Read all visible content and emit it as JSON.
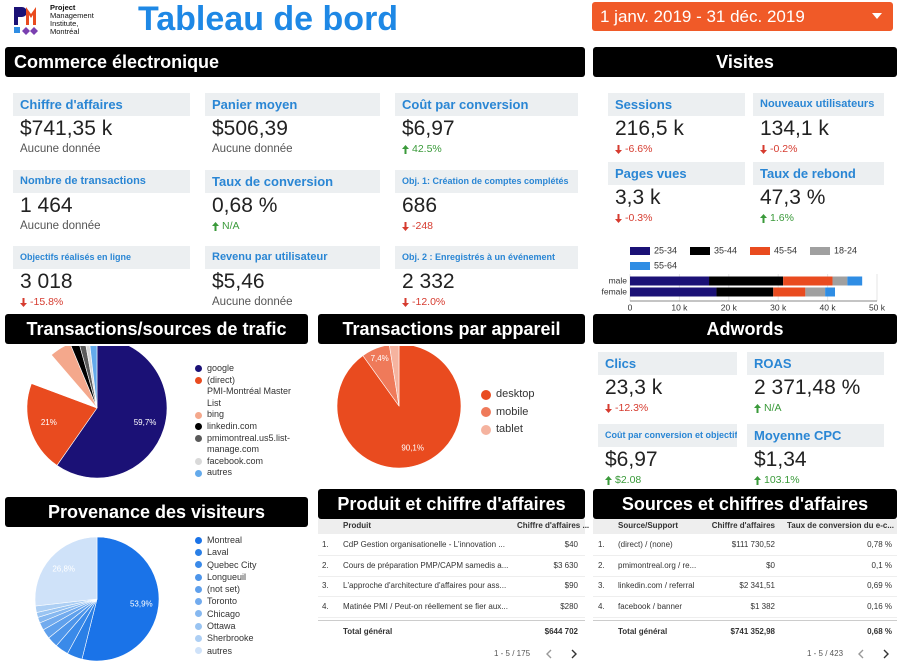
{
  "header": {
    "logo_lines": [
      "Project",
      "Management",
      "Institute,",
      "Montréal"
    ],
    "title": "Tableau de bord",
    "date_range": "1 janv. 2019 - 31 déc. 2019"
  },
  "sections": [
    {
      "title": "Commerce électronique",
      "cards": [
        {
          "label": "Chiffre d'affaires",
          "value": "$741,35 k",
          "note": "Aucune donnée"
        },
        {
          "label": "Panier moyen",
          "value": "$506,39",
          "note": "Aucune donnée"
        },
        {
          "label": "Coût par conversion",
          "value": "$6,97",
          "change": "42.5%",
          "trend": "up"
        },
        {
          "label": "Nombre de transactions",
          "value": "1 464",
          "note": "Aucune donnée"
        },
        {
          "label": "Taux de conversion",
          "value": "0,68 %",
          "change": "N/A",
          "trend": "up"
        },
        {
          "label": "Obj. 1: Création de comptes complétés",
          "value": "686",
          "change": "-248",
          "trend": "down"
        },
        {
          "label": "Objectifs réalisés en ligne",
          "value": "3 018",
          "change": "-15.8%",
          "trend": "down"
        },
        {
          "label": "Revenu par utilisateur",
          "value": "$5,46",
          "note": "Aucune donnée"
        },
        {
          "label": "Obj. 2 : Enregistrés à un événement",
          "value": "2 332",
          "change": "-12.0%",
          "trend": "down"
        }
      ]
    },
    {
      "title": "Visites",
      "cards": [
        {
          "label": "Sessions",
          "value": "216,5 k",
          "change": "-6.6%",
          "trend": "down"
        },
        {
          "label": "Nouveaux utilisateurs",
          "value": "134,1 k",
          "change": "-0.2%",
          "trend": "down"
        },
        {
          "label": "Pages vues",
          "value": "3,3 k",
          "change": "-0.3%",
          "trend": "down"
        },
        {
          "label": "Taux de rebond",
          "value": "47,3 %",
          "change": "1.6%",
          "trend": "up"
        }
      ]
    },
    {
      "title": "Adwords",
      "cards": [
        {
          "label": "Clics",
          "value": "23,3 k",
          "change": "-12.3%",
          "trend": "down"
        },
        {
          "label": "ROAS",
          "value": "2 371,48 %",
          "change": "N/A",
          "trend": "up"
        },
        {
          "label": "Coût par conversion et objectif",
          "value": "$6,97",
          "change": "$2.08",
          "trend": "up"
        },
        {
          "label": "Moyenne CPC",
          "value": "$1,34",
          "change": "103.1%",
          "trend": "up"
        }
      ]
    }
  ],
  "chart_data": [
    {
      "type": "pie",
      "title": "Transactions/sources de trafic",
      "categories": [
        "google",
        "(direct)",
        "PMI-Montréal Master List",
        "bing",
        "linkedin.com",
        "pmimontreal.us5.list-manage.com",
        "facebook.com",
        "autres"
      ],
      "values": [
        59.7,
        21,
        8,
        5,
        2,
        1.5,
        1,
        1.8
      ],
      "value_labels": [
        "59,7%",
        "21%",
        null,
        null,
        null,
        null,
        null,
        null
      ],
      "colors": [
        "#1b1176",
        "#e94b1f",
        "#ffffff",
        "#f4a88c",
        "#000000",
        "#5a5a5a",
        "#d9d9d9",
        "#64aaeb"
      ]
    },
    {
      "type": "pie",
      "title": "Transactions par appareil",
      "categories": [
        "desktop",
        "mobile",
        "tablet"
      ],
      "values": [
        90.1,
        7.4,
        2.5
      ],
      "value_labels": [
        "90,1%",
        "7,4%",
        null
      ],
      "colors": [
        "#e94b1f",
        "#ef7a5a",
        "#f5b39f"
      ]
    },
    {
      "type": "pie",
      "title": "Provenance des visiteurs",
      "categories": [
        "Montreal",
        "Laval",
        "Quebec City",
        "Longueuil",
        "(not set)",
        "Toronto",
        "Chicago",
        "Ottawa",
        "Sherbrooke",
        "autres"
      ],
      "values": [
        53.9,
        4,
        3.5,
        2.8,
        2.5,
        2,
        1.5,
        1.3,
        1.7,
        26.8
      ],
      "value_labels": [
        "53,9%",
        null,
        null,
        null,
        null,
        null,
        null,
        null,
        null,
        "26,8%"
      ],
      "colors": [
        "#1a73e8",
        "#2a7fe6",
        "#3a8ae9",
        "#4d95ea",
        "#5fa0ec",
        "#72abee",
        "#86b8f0",
        "#99c4f2",
        "#adcff4",
        "#cfe2f9"
      ]
    },
    {
      "type": "bar",
      "orientation": "horizontal",
      "stacked": true,
      "categories": [
        "male",
        "female"
      ],
      "series": [
        {
          "name": "25-34",
          "color": "#1b1176",
          "values": [
            16000,
            17500
          ]
        },
        {
          "name": "35-44",
          "color": "#000000",
          "values": [
            15000,
            11500
          ]
        },
        {
          "name": "45-54",
          "color": "#e94b1f",
          "values": [
            10000,
            6500
          ]
        },
        {
          "name": "18-24",
          "color": "#a0a0a0",
          "values": [
            3000,
            4000
          ]
        },
        {
          "name": "55-64",
          "color": "#2f8de4",
          "values": [
            3000,
            2000
          ]
        }
      ],
      "xlim": [
        0,
        50000
      ],
      "xticks": [
        0,
        {
          "value": 10000,
          "label": "10 k"
        },
        {
          "value": 20000,
          "label": "20 k"
        },
        {
          "value": 30000,
          "label": "30 k"
        },
        {
          "value": 40000,
          "label": "40 k"
        },
        {
          "value": 50000,
          "label": "50 k"
        }
      ]
    }
  ],
  "tables": [
    {
      "title": "Produit et chiffre d'affaires",
      "columns": [
        "Produit",
        "Chiffre d'affaires ..."
      ],
      "rows": [
        [
          "1.",
          "CdP Gestion organisationelle - L'innovation ...",
          "$40"
        ],
        [
          "2.",
          "Cours de préparation PMP/CAPM samedis a...",
          "$3 630"
        ],
        [
          "3.",
          "L'approche d'architecture d'affaires pour ass...",
          "$90"
        ],
        [
          "4.",
          "Matinée PMI / Peut-on réellement se fier aux...",
          "$280"
        ]
      ],
      "total": [
        "Total général",
        "$644 702"
      ],
      "pagination": "1 - 5 / 175"
    },
    {
      "title": "Sources et chiffres d'affaires",
      "columns": [
        "Source/Support",
        "Chiffre d'affaires",
        "Taux de conversion du e-c..."
      ],
      "rows": [
        [
          "1.",
          "(direct) / (none)",
          "$111 730,52",
          "0,78 %"
        ],
        [
          "2.",
          "pmimontreal.org / re...",
          "$0",
          "0,1 %"
        ],
        [
          "3.",
          "linkedin.com / referral",
          "$2 341,51",
          "0,69 %"
        ],
        [
          "4.",
          "facebook / banner",
          "$1 382",
          "0,16 %"
        ]
      ],
      "total": [
        "Total général",
        "$741 352,98",
        "0,68 %"
      ],
      "pagination": "1 - 5 / 423"
    }
  ]
}
